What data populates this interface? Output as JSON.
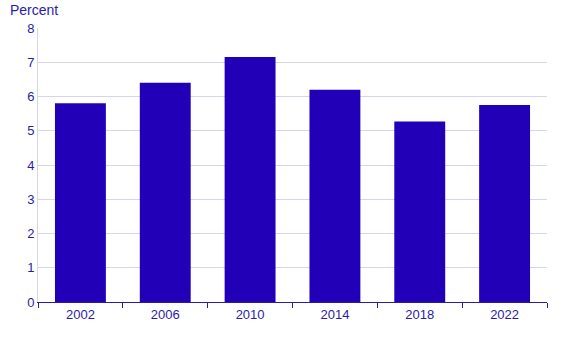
{
  "chart_data": {
    "type": "bar",
    "ylabel": "Percent",
    "categories": [
      "2002",
      "2006",
      "2010",
      "2014",
      "2018",
      "2022"
    ],
    "values": [
      5.8,
      6.4,
      7.15,
      6.2,
      5.27,
      5.75
    ],
    "color": "#2200b8",
    "ylim": [
      0,
      8
    ],
    "yticks": [
      0,
      1,
      2,
      3,
      4,
      5,
      6,
      7,
      8
    ],
    "grid": true
  }
}
